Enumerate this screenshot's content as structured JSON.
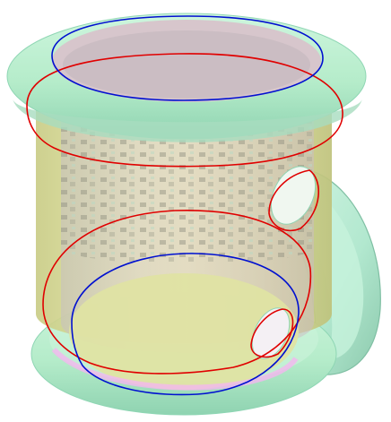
{
  "scene": {
    "subject": "mug-3d-render",
    "colors": {
      "background": "#ffffff",
      "ring_fill": "#b9efce",
      "ring_edge": "#8fd6b4",
      "body_fill": "#dfe29a",
      "body_shade": "#c8ca7e",
      "inner_wall": "#d9c9cf",
      "inner_dark": "#9c9c86",
      "handle_fill": "#b6ecd2",
      "handle_edge": "#7fbfa3",
      "highlight": "#f4b6ef",
      "red_curve": "#e00000",
      "blue_curve": "#0010d0"
    }
  }
}
